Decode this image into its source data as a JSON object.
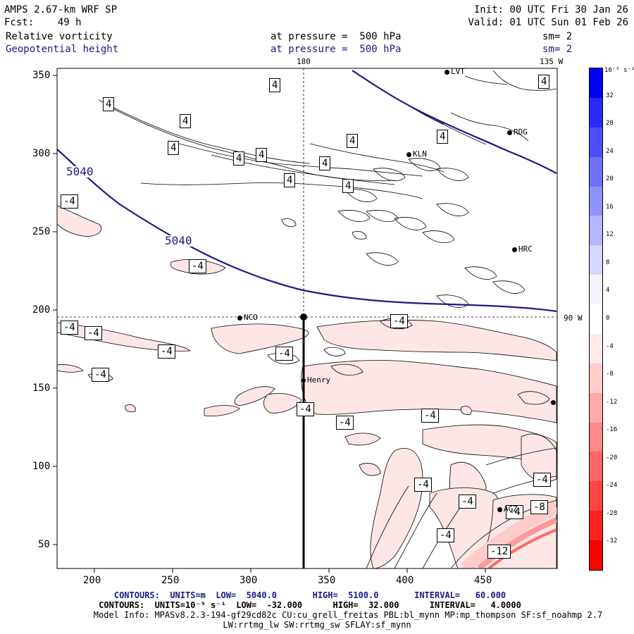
{
  "header": {
    "model": "AMPS 2.67-km WRF SP",
    "fcst_label": "Fcst:",
    "fcst_value": "49 h",
    "init": "Init: 00 UTC Fri 30 Jan 26",
    "valid": "Valid: 01 UTC Sun 01 Feb 26",
    "field1": "Relative vorticity",
    "field1_level": "at pressure =  500 hPa",
    "field1_sm": "sm= 2",
    "field2": "Geopotential height",
    "field2_level": "at pressure =  500 hPa",
    "field2_sm": "sm= 2"
  },
  "map": {
    "top_label_180": "180",
    "top_label_135w": "135 W",
    "right_label_90w": "90 W",
    "x_ticks": [
      "200",
      "250",
      "300",
      "350",
      "400",
      "450"
    ],
    "y_ticks": [
      "350",
      "300",
      "250",
      "200",
      "150",
      "100",
      "50"
    ],
    "stations": [
      {
        "id": "LVT",
        "name": "LVT"
      },
      {
        "id": "RDG",
        "name": "RDG"
      },
      {
        "id": "KLN",
        "name": "KLN"
      },
      {
        "id": "HRC",
        "name": "HRC"
      },
      {
        "id": "NCO",
        "name": "NCO"
      },
      {
        "id": "Henry",
        "name": "Henry"
      },
      {
        "id": "AGZ",
        "name": "AGZ"
      }
    ],
    "height_contour_label": "5040",
    "positive_vort_label": "4",
    "negative_vort_labels": [
      "-4",
      "-8",
      "-12"
    ]
  },
  "colorbar": {
    "unit_label": "10⁻⁵ s⁻¹",
    "ticks": [
      "32",
      "28",
      "24",
      "20",
      "16",
      "12",
      "8",
      "4",
      "0",
      "-4",
      "-8",
      "-12",
      "-16",
      "-20",
      "-24",
      "-28",
      "-32"
    ],
    "colors": [
      "#0000ff",
      "#2a2aff",
      "#4e4eff",
      "#7070ff",
      "#9292ff",
      "#b4b4ff",
      "#d6d6ff",
      "#f4f4ff",
      "#ffffff",
      "#ffeaea",
      "#ffcccc",
      "#ffaaaa",
      "#ff8888",
      "#ff6666",
      "#ff4444",
      "#ff2222",
      "#ff0000"
    ]
  },
  "footer": {
    "contours1": "CONTOURS:  UNITS=m  LOW=  5040.0       HIGH=  5100.0       INTERVAL=   60.000",
    "contours2": "CONTOURS:  UNITS=10⁻⁵ s⁻¹  LOW=  -32.000      HIGH=  32.000      INTERVAL=   4.0000",
    "model_info": "Model Info: MPASv8.2.3-194-gf29cd82c CU:cu_grell_freitas PBL:bl_mynn MP:mp_thompson SF:sf_noahmp 2.7",
    "model_info2": "LW:rrtmg_lw SW:rrtmg_sw SFLAY:sf_mynn"
  }
}
